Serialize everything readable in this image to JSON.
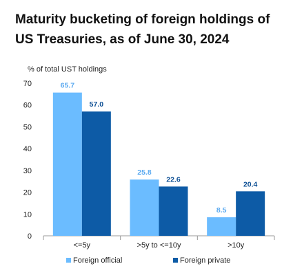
{
  "title_line1": "Maturity bucketing of foreign holdings of",
  "title_line2": "US Treasuries, as of June 30, 2024",
  "chart_data": {
    "type": "bar",
    "title": "Maturity bucketing of foreign holdings of US Treasuries, as of June 30, 2024",
    "ylabel": "% of total UST holdings",
    "xlabel": "",
    "ylim": [
      0,
      70
    ],
    "yticks": [
      0,
      10,
      20,
      30,
      40,
      50,
      60,
      70
    ],
    "categories": [
      "<=5y",
      ">5y to <=10y",
      ">10y"
    ],
    "series": [
      {
        "name": "Foreign official",
        "values": [
          65.7,
          25.8,
          8.5
        ],
        "color": "#6bbcff",
        "label_color": "#5aa9f0"
      },
      {
        "name": "Foreign private",
        "values": [
          57.0,
          22.6,
          20.4
        ],
        "color": "#0d5ba6",
        "label_color": "#0d4f94"
      }
    ],
    "grid": false,
    "legend_position": "bottom"
  }
}
